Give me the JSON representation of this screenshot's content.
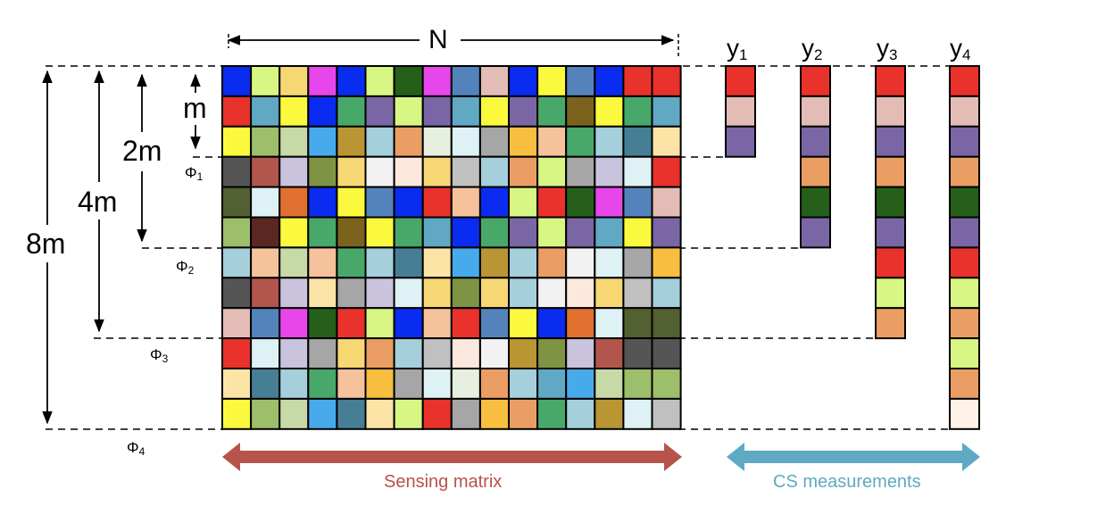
{
  "labels": {
    "n": "N",
    "m": "m",
    "two_m": "2m",
    "four_m": "4m",
    "eight_m": "8m",
    "phi_symbol": "Φ",
    "phi_subs": [
      "1",
      "2",
      "3",
      "4"
    ],
    "y_symbol": "y",
    "y_subs": [
      "1",
      "2",
      "3",
      "4"
    ],
    "sensing_matrix": "Sensing matrix",
    "cs_measurements": "CS measurements"
  },
  "colors": {
    "sensing_arrow": "#b7534a",
    "cs_arrow": "#5fa9c4",
    "palette": {
      "B": "#0a2bf0",
      "g": "#d8f683",
      "y": "#f7d774",
      "M": "#e746ea",
      "G": "#47a86a",
      "Y": "#fbf93d",
      "D": "#255f1a",
      "S": "#5483bb",
      "p": "#e3bcb6",
      "R": "#e8322b",
      "o": "#ea9e63",
      "O": "#f7be3f",
      "V": "#7a66a5",
      "t": "#60a8c3",
      "k": "#9dbe6a",
      "c": "#c8d9a8",
      "L": "#47abeb",
      "b": "#b99533",
      "l": "#a4cfdb",
      "w": "#e7f0e0",
      "h": "#def1f4",
      "a": "#a6a6a6",
      "q": "#f5c29c",
      "T": "#467e95",
      "F": "#fbe4a6",
      "K": "#555555",
      "r": "#b2564d",
      "v": "#cac3dd",
      "A": "#7e9444",
      "W": "#f2f2f2",
      "P": "#fce8dc",
      "s": "#c0c0c0",
      "E": "#526032",
      "n": "#e07131",
      "Q": "#dc9e28",
      "x": "#5d2721",
      "u": "#7b621d",
      "e": "#fff2e6"
    }
  },
  "matrix_rows": [
    "BgyMBgDMSpBYSBR",
    "RtYBGVgVtYVGuYGt",
    "YkcLblowhaOqGlTF",
    "KrvAyWPyslogavhR",
    "EhnBYSBRqBgRDMSp",
    "kxYGuYGtBGVgVtYV",
    "lqcqGlTFLbloWhaO",
    "KrvFavhyAylWPysl",
    "pSMDRgBqRSYBnhE",
    "RhvayolsPWbAvrK",
    "FTlGqOahwoltLck",
    "YkcLTFgRaOoGlbhs"
  ],
  "measurements": [
    [
      "R",
      "p",
      "V"
    ],
    [
      "R",
      "p",
      "V",
      "o",
      "D",
      "V"
    ],
    [
      "R",
      "p",
      "V",
      "o",
      "D",
      "V",
      "R",
      "g",
      "o"
    ],
    [
      "R",
      "p",
      "V",
      "o",
      "D",
      "V",
      "R",
      "g",
      "o",
      "g",
      "o",
      "e"
    ]
  ]
}
